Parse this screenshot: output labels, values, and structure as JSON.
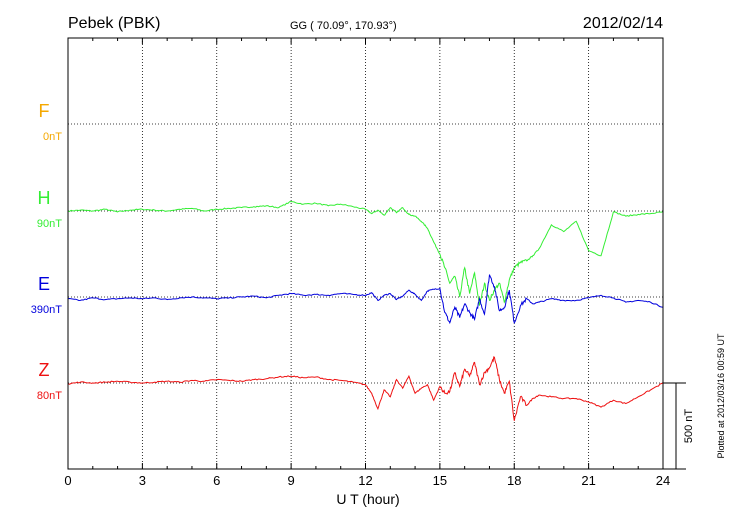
{
  "header": {
    "station": "Pebek (PBK)",
    "coords": "GG ( 70.09°, 170.93°)",
    "date": "2012/02/14"
  },
  "plotted_note": "Plotted at 2012/03/16 00:59 UT",
  "scale_bar_label": "500 nT",
  "colors": {
    "F": "#f5a800",
    "H": "#33ee33",
    "E": "#0000dd",
    "Z": "#ee1111",
    "axis": "#000000"
  },
  "chart_data": {
    "type": "line",
    "xlabel": "U T (hour)",
    "xlim": [
      0,
      24
    ],
    "x_ticks": [
      0,
      3,
      6,
      9,
      12,
      15,
      18,
      21,
      24
    ],
    "tick_labels": [
      "0",
      "3",
      "6",
      "9",
      "12",
      "15",
      "18",
      "21",
      "24"
    ],
    "grid": true,
    "scale_nT": 500,
    "series": [
      {
        "name": "F",
        "baseline_label": "0nT",
        "x": [],
        "y": []
      },
      {
        "name": "H",
        "baseline_label": "90nT",
        "x": [
          0,
          0.5,
          1,
          1.5,
          2,
          2.5,
          3,
          3.5,
          4,
          4.5,
          5,
          5.5,
          6,
          6.5,
          7,
          7.5,
          8,
          8.5,
          9,
          9.5,
          10,
          10.5,
          11,
          11.5,
          12,
          12.25,
          12.5,
          12.75,
          13,
          13.25,
          13.5,
          13.75,
          14,
          14.25,
          14.5,
          14.75,
          15,
          15.2,
          15.4,
          15.6,
          15.8,
          16,
          16.2,
          16.4,
          16.6,
          16.8,
          17,
          17.2,
          17.4,
          17.6,
          17.8,
          18,
          18.25,
          18.5,
          18.75,
          19,
          19.5,
          20,
          20.5,
          21,
          21.5,
          22,
          22.5,
          23,
          23.5,
          24
        ],
        "y": [
          0,
          5,
          0,
          10,
          -5,
          5,
          10,
          5,
          0,
          10,
          15,
          0,
          10,
          15,
          20,
          25,
          30,
          20,
          55,
          40,
          45,
          30,
          40,
          25,
          10,
          -15,
          5,
          -25,
          20,
          -10,
          20,
          -20,
          -30,
          -60,
          -100,
          -180,
          -250,
          -330,
          -420,
          -380,
          -500,
          -330,
          -480,
          -360,
          -550,
          -420,
          -520,
          -460,
          -420,
          -530,
          -400,
          -330,
          -300,
          -290,
          -260,
          -220,
          -80,
          -120,
          -60,
          -230,
          -260,
          -5,
          -30,
          -20,
          -15,
          -5
        ]
      },
      {
        "name": "E",
        "baseline_label": "390nT",
        "x": [
          0,
          0.5,
          1,
          1.5,
          2,
          2.5,
          3,
          3.5,
          4,
          4.5,
          5,
          5.5,
          6,
          6.5,
          7,
          7.5,
          8,
          8.5,
          9,
          9.5,
          10,
          10.5,
          11,
          11.5,
          12,
          12.25,
          12.5,
          12.75,
          13,
          13.25,
          13.5,
          13.75,
          14,
          14.25,
          14.5,
          14.75,
          15,
          15.2,
          15.4,
          15.6,
          15.8,
          16,
          16.2,
          16.4,
          16.6,
          16.8,
          17,
          17.2,
          17.4,
          17.6,
          17.8,
          18,
          18.25,
          18.5,
          18.75,
          19,
          19.5,
          20,
          20.5,
          21,
          21.5,
          22,
          22.5,
          23,
          23.5,
          24
        ],
        "y": [
          -10,
          -20,
          -5,
          -15,
          -10,
          -5,
          -10,
          -5,
          -15,
          -5,
          0,
          -5,
          -10,
          -5,
          0,
          5,
          -5,
          10,
          20,
          10,
          15,
          10,
          20,
          15,
          10,
          25,
          -20,
          10,
          20,
          -15,
          5,
          40,
          15,
          -20,
          35,
          45,
          50,
          -90,
          -150,
          -60,
          -120,
          -40,
          -90,
          -130,
          -10,
          -100,
          130,
          60,
          -80,
          -60,
          40,
          -150,
          -50,
          -10,
          -40,
          -30,
          -10,
          -20,
          -20,
          -5,
          10,
          -5,
          -30,
          -20,
          -30,
          -60
        ]
      },
      {
        "name": "Z",
        "baseline_label": "80nT",
        "x": [
          0,
          0.5,
          1,
          1.5,
          2,
          2.5,
          3,
          3.5,
          4,
          4.5,
          5,
          5.5,
          6,
          6.5,
          7,
          7.5,
          8,
          8.5,
          9,
          9.5,
          10,
          10.5,
          11,
          11.5,
          12,
          12.25,
          12.5,
          12.75,
          13,
          13.25,
          13.5,
          13.75,
          14,
          14.25,
          14.5,
          14.75,
          15,
          15.2,
          15.4,
          15.6,
          15.8,
          16,
          16.2,
          16.4,
          16.6,
          16.8,
          17,
          17.2,
          17.4,
          17.6,
          17.8,
          18,
          18.25,
          18.5,
          18.75,
          19,
          19.5,
          20,
          20.5,
          21,
          21.5,
          22,
          22.5,
          23,
          23.5,
          24
        ],
        "y": [
          -5,
          5,
          0,
          5,
          10,
          5,
          0,
          5,
          10,
          5,
          15,
          10,
          20,
          15,
          10,
          20,
          25,
          35,
          40,
          30,
          35,
          20,
          15,
          5,
          -10,
          -60,
          -150,
          -40,
          -80,
          20,
          -30,
          40,
          -60,
          -30,
          -10,
          -100,
          -20,
          -60,
          -50,
          60,
          -20,
          80,
          40,
          120,
          -10,
          60,
          90,
          150,
          20,
          -60,
          10,
          -220,
          -80,
          -130,
          -90,
          -70,
          -80,
          -90,
          -90,
          -110,
          -140,
          -100,
          -120,
          -80,
          -40,
          0
        ]
      }
    ]
  }
}
